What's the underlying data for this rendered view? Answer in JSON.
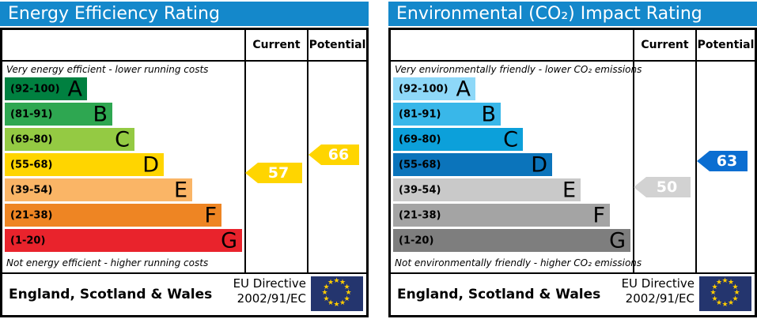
{
  "panels": [
    {
      "title": "Energy Efficiency Rating",
      "columns": {
        "current": "Current",
        "potential": "Potential"
      },
      "top_caption": "Very energy efficient - lower running costs",
      "bottom_caption": "Not energy efficient - higher running costs",
      "bands": [
        {
          "letter": "A",
          "range": "(92-100)",
          "color": "#008040"
        },
        {
          "letter": "B",
          "range": "(81-91)",
          "color": "#2ea751"
        },
        {
          "letter": "C",
          "range": "(69-80)",
          "color": "#94ca43"
        },
        {
          "letter": "D",
          "range": "(55-68)",
          "color": "#ffd500"
        },
        {
          "letter": "E",
          "range": "(39-54)",
          "color": "#fab566"
        },
        {
          "letter": "F",
          "range": "(21-38)",
          "color": "#ee8523"
        },
        {
          "letter": "G",
          "range": "(1-20)",
          "color": "#e9232c"
        }
      ],
      "current": {
        "value": 57,
        "color": "#ffd500"
      },
      "potential": {
        "value": 66,
        "color": "#ffd500"
      },
      "footer": {
        "region": "England, Scotland & Wales",
        "directive_line1": "EU Directive",
        "directive_line2": "2002/91/EC"
      }
    },
    {
      "title": "Environmental (CO₂) Impact Rating",
      "columns": {
        "current": "Current",
        "potential": "Potential"
      },
      "top_caption": "Very environmentally friendly - lower CO₂ emissions",
      "bottom_caption": "Not environmentally friendly - higher CO₂ emissions",
      "bands": [
        {
          "letter": "A",
          "range": "(92-100)",
          "color": "#8ed8f8"
        },
        {
          "letter": "B",
          "range": "(81-91)",
          "color": "#39b7e9"
        },
        {
          "letter": "C",
          "range": "(69-80)",
          "color": "#0ca0da"
        },
        {
          "letter": "D",
          "range": "(55-68)",
          "color": "#0b74bb"
        },
        {
          "letter": "E",
          "range": "(39-54)",
          "color": "#c9c9c9"
        },
        {
          "letter": "F",
          "range": "(21-38)",
          "color": "#a4a4a4"
        },
        {
          "letter": "G",
          "range": "(1-20)",
          "color": "#7e7e7e"
        }
      ],
      "current": {
        "value": 50,
        "color": "#d2d2d2"
      },
      "potential": {
        "value": 63,
        "color": "#0b6ed1"
      },
      "footer": {
        "region": "England, Scotland & Wales",
        "directive_line1": "EU Directive",
        "directive_line2": "2002/91/EC"
      }
    }
  ],
  "colors": {
    "header_bg": "#1488cb",
    "border": "#000000",
    "flag_bg": "#24356e",
    "star": "#ffcc00",
    "arrow_text": "#ffffff"
  },
  "chart_data": [
    {
      "type": "bar",
      "title": "Energy Efficiency Rating",
      "categories": [
        "A",
        "B",
        "C",
        "D",
        "E",
        "F",
        "G"
      ],
      "band_ranges": [
        [
          92,
          100
        ],
        [
          81,
          91
        ],
        [
          69,
          80
        ],
        [
          55,
          68
        ],
        [
          39,
          54
        ],
        [
          21,
          38
        ],
        [
          1,
          20
        ]
      ],
      "series": [
        {
          "name": "Current",
          "values": [
            57
          ]
        },
        {
          "name": "Potential",
          "values": [
            66
          ]
        }
      ],
      "current_band": "D",
      "potential_band": "D",
      "xlabel": "",
      "ylabel": "",
      "ylim": [
        1,
        100
      ],
      "legend_position": "columns-right",
      "grid": false
    },
    {
      "type": "bar",
      "title": "Environmental (CO₂) Impact Rating",
      "categories": [
        "A",
        "B",
        "C",
        "D",
        "E",
        "F",
        "G"
      ],
      "band_ranges": [
        [
          92,
          100
        ],
        [
          81,
          91
        ],
        [
          69,
          80
        ],
        [
          55,
          68
        ],
        [
          39,
          54
        ],
        [
          21,
          38
        ],
        [
          1,
          20
        ]
      ],
      "series": [
        {
          "name": "Current",
          "values": [
            50
          ]
        },
        {
          "name": "Potential",
          "values": [
            63
          ]
        }
      ],
      "current_band": "E",
      "potential_band": "D",
      "xlabel": "",
      "ylabel": "",
      "ylim": [
        1,
        100
      ],
      "legend_position": "columns-right",
      "grid": false
    }
  ]
}
